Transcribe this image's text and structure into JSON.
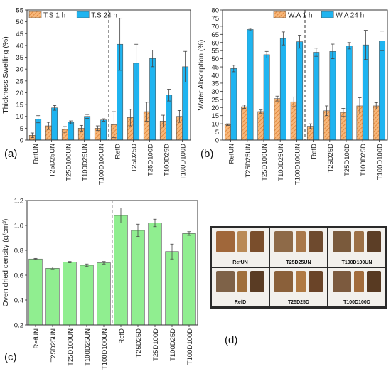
{
  "panel_labels": {
    "a": "(a)",
    "b": "(b)",
    "c": "(c)",
    "d": "(d)"
  },
  "chart_data": [
    {
      "id": "a",
      "type": "bar",
      "ylabel": "Thickness Swelling (%)",
      "ylim": [
        0,
        55
      ],
      "yticks": [
        0,
        5,
        10,
        15,
        20,
        25,
        30,
        35,
        40,
        45,
        50,
        55
      ],
      "legend_placement": "top-left",
      "categories": [
        "RefUN",
        "T25D25UN",
        "T25D100UN",
        "T100D25UN",
        "T100D100UN",
        "RefD",
        "T25D25D",
        "T25D100D",
        "T100D25D",
        "T100D100D"
      ],
      "series": [
        {
          "name": "T.S 1 h",
          "color": "#f4a460",
          "pattern": "hatch",
          "values": [
            2.0,
            6.0,
            4.5,
            5.0,
            5.0,
            6.5,
            9.5,
            12.0,
            8.0,
            10.0
          ],
          "errors": [
            1.0,
            1.5,
            1.2,
            1.2,
            1.0,
            5.5,
            3.5,
            4.0,
            2.5,
            2.5
          ]
        },
        {
          "name": "T.S 24 h",
          "color": "#1fb4f0",
          "pattern": "solid",
          "values": [
            8.8,
            13.6,
            7.5,
            10.0,
            8.5,
            40.5,
            32.5,
            34.5,
            19.0,
            31.0
          ],
          "errors": [
            1.5,
            1.0,
            0.6,
            0.8,
            0.5,
            11.0,
            8.0,
            3.5,
            2.5,
            6.5
          ]
        }
      ]
    },
    {
      "id": "b",
      "type": "bar",
      "ylabel": "Water Absorption (%)",
      "ylim": [
        0,
        80
      ],
      "yticks": [
        0,
        5,
        10,
        15,
        20,
        25,
        30,
        35,
        40,
        45,
        50,
        55,
        60,
        65,
        70,
        75,
        80
      ],
      "legend_placement": "top-right",
      "categories": [
        "RefUN",
        "T25D25UN",
        "T25D100UN",
        "T100D25UN",
        "T100D100UN",
        "RefD",
        "T25D25D",
        "T25D100D",
        "T100D25D",
        "T100D100D"
      ],
      "series": [
        {
          "name": "W.A 1 h",
          "color": "#f4a460",
          "pattern": "hatch",
          "values": [
            9.5,
            20.5,
            17.5,
            25.5,
            23.5,
            8.5,
            18.0,
            17.0,
            21.0,
            21.0
          ],
          "errors": [
            0.5,
            1.0,
            1.0,
            1.5,
            3.0,
            1.5,
            3.0,
            2.5,
            5.0,
            2.0
          ]
        },
        {
          "name": "W.A 24 h",
          "color": "#1fb4f0",
          "pattern": "solid",
          "values": [
            44.0,
            68.0,
            52.5,
            62.5,
            60.5,
            54.0,
            54.5,
            58.0,
            58.5,
            61.0
          ],
          "errors": [
            2.0,
            0.7,
            2.0,
            4.0,
            4.0,
            2.5,
            4.5,
            2.0,
            9.0,
            6.0
          ]
        }
      ]
    },
    {
      "id": "c",
      "type": "bar",
      "ylabel": "Oven dried density (g/cm³)",
      "ylim": [
        0.2,
        1.2
      ],
      "yticks": [
        0.2,
        0.4,
        0.6,
        0.8,
        1.0,
        1.2
      ],
      "ytick_labels": [
        "0.2",
        "0.4",
        "0.6",
        "0.8",
        "1.0",
        "1.2"
      ],
      "categories": [
        "RefUN",
        "T25D25UN",
        "T25D100UN",
        "T100D25UN",
        "T100D100UN",
        "RefD",
        "T25D25D",
        "T25D100D",
        "T100D25D",
        "T100D100D"
      ],
      "series": [
        {
          "color": "#90ee90",
          "pattern": "solid",
          "values": [
            0.73,
            0.655,
            0.705,
            0.68,
            0.7,
            1.08,
            0.96,
            1.02,
            0.79,
            0.935
          ],
          "errors": [
            0.005,
            0.01,
            0.005,
            0.01,
            0.01,
            0.06,
            0.05,
            0.03,
            0.06,
            0.015
          ]
        }
      ]
    }
  ],
  "photo_panel": {
    "captions": [
      "RefUN",
      "T25D25UN",
      "T100D100UN",
      "RefD",
      "T25D25D",
      "T100D100D"
    ]
  }
}
